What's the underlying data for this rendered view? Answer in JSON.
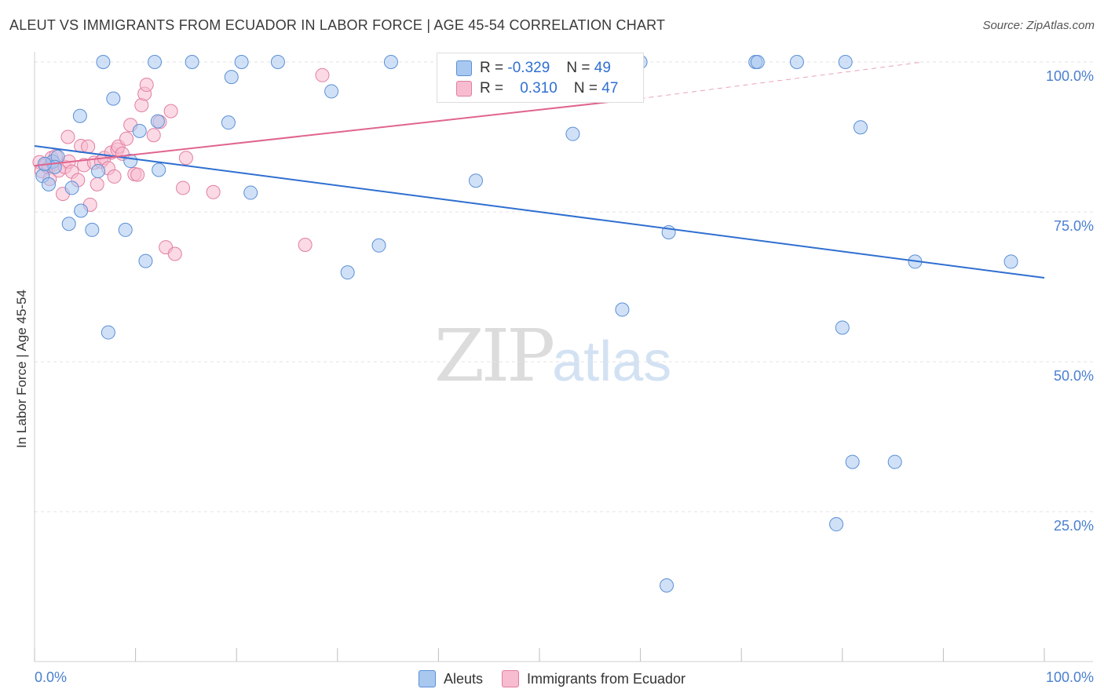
{
  "header": {
    "title": "ALEUT VS IMMIGRANTS FROM ECUADOR IN LABOR FORCE | AGE 45-54 CORRELATION CHART",
    "source": "Source: ZipAtlas.com"
  },
  "watermark": {
    "zip": "ZIP",
    "atlas": "atlas"
  },
  "legend_top": {
    "rows": [
      {
        "r_label": "R =",
        "r_value": "-0.329",
        "n_label": "N =",
        "n_value": "49"
      },
      {
        "r_label": "R =",
        "r_value": "0.310",
        "n_label": "N =",
        "n_value": "47"
      }
    ]
  },
  "legend_bottom": {
    "items": [
      "Aleuts",
      "Immigrants from Ecuador"
    ]
  },
  "colors": {
    "blue_fill": "#a9c8f0",
    "blue_stroke": "#5b8fd6",
    "blue_line": "#2f6fd0",
    "pink_fill": "#f7bcd0",
    "pink_stroke": "#e27ea1",
    "pink_line": "#e0648f",
    "grid": "#e3e3e3",
    "axis_label": "#4a7fd0"
  },
  "chart_data": {
    "type": "scatter",
    "title": "ALEUT VS IMMIGRANTS FROM ECUADOR IN LABOR FORCE | AGE 45-54 CORRELATION CHART",
    "xlabel": "",
    "ylabel": "In Labor Force | Age 45-54",
    "xlim": [
      0,
      100
    ],
    "ylim": [
      0,
      100
    ],
    "x_tick_labels": [
      "0.0%",
      "100.0%"
    ],
    "y_ticks": [
      25,
      50,
      75,
      100
    ],
    "y_tick_labels": [
      "25.0%",
      "50.0%",
      "75.0%",
      "100.0%"
    ],
    "series": [
      {
        "name": "Aleuts",
        "r": -0.329,
        "n": 49,
        "trend": {
          "x": [
            0,
            100
          ],
          "y": [
            86.0,
            64.0
          ]
        },
        "points": [
          [
            0.8,
            81.0
          ],
          [
            1.4,
            79.6
          ],
          [
            1.8,
            83.4
          ],
          [
            2.3,
            84.2
          ],
          [
            3.7,
            79.0
          ],
          [
            3.4,
            73.0
          ],
          [
            4.6,
            75.2
          ],
          [
            4.5,
            91.0
          ],
          [
            5.7,
            72.0
          ],
          [
            6.3,
            81.8
          ],
          [
            6.8,
            100.0
          ],
          [
            7.8,
            93.9
          ],
          [
            9.0,
            72.0
          ],
          [
            10.4,
            88.5
          ],
          [
            11.0,
            66.8
          ],
          [
            11.9,
            100.0
          ],
          [
            12.2,
            90.1
          ],
          [
            12.3,
            82.0
          ],
          [
            7.3,
            54.9
          ],
          [
            9.5,
            83.5
          ],
          [
            15.6,
            100.0
          ],
          [
            19.2,
            89.9
          ],
          [
            19.5,
            97.5
          ],
          [
            20.5,
            100.0
          ],
          [
            21.4,
            78.2
          ],
          [
            24.1,
            100.0
          ],
          [
            29.4,
            95.1
          ],
          [
            31.0,
            64.9
          ],
          [
            34.1,
            69.4
          ],
          [
            35.3,
            100.0
          ],
          [
            43.7,
            80.2
          ],
          [
            53.3,
            88.0
          ],
          [
            58.2,
            58.7
          ],
          [
            60.0,
            100.0
          ],
          [
            62.6,
            12.7
          ],
          [
            62.8,
            71.6
          ],
          [
            71.4,
            100.0
          ],
          [
            71.6,
            100.0
          ],
          [
            75.5,
            100.0
          ],
          [
            79.4,
            22.9
          ],
          [
            80.0,
            55.7
          ],
          [
            80.3,
            100.0
          ],
          [
            81.0,
            33.3
          ],
          [
            81.8,
            89.1
          ],
          [
            85.2,
            33.3
          ],
          [
            87.2,
            66.7
          ],
          [
            96.7,
            66.7
          ],
          [
            2.0,
            82.5
          ],
          [
            1.0,
            83.0
          ]
        ]
      },
      {
        "name": "Immigrants from Ecuador",
        "r": 0.31,
        "n": 47,
        "trend": {
          "x": [
            0,
            60
          ],
          "y": [
            82.7,
            93.9
          ]
        },
        "trend_dashed": {
          "x": [
            60,
            88
          ],
          "y": [
            93.9,
            100.0
          ]
        },
        "points": [
          [
            0.5,
            83.3
          ],
          [
            0.7,
            81.8
          ],
          [
            1.1,
            82.8
          ],
          [
            1.4,
            82.4
          ],
          [
            1.5,
            80.5
          ],
          [
            1.7,
            84.0
          ],
          [
            1.9,
            83.0
          ],
          [
            2.1,
            84.3
          ],
          [
            2.4,
            81.9
          ],
          [
            2.8,
            78.0
          ],
          [
            3.0,
            82.5
          ],
          [
            3.3,
            87.5
          ],
          [
            3.4,
            83.4
          ],
          [
            3.7,
            81.7
          ],
          [
            4.3,
            80.3
          ],
          [
            4.6,
            86.0
          ],
          [
            4.9,
            82.8
          ],
          [
            5.3,
            85.9
          ],
          [
            5.5,
            76.2
          ],
          [
            5.9,
            83.2
          ],
          [
            6.2,
            79.6
          ],
          [
            6.6,
            83.4
          ],
          [
            6.9,
            84.0
          ],
          [
            7.3,
            82.3
          ],
          [
            7.6,
            84.9
          ],
          [
            7.9,
            80.9
          ],
          [
            8.2,
            85.4
          ],
          [
            8.3,
            85.9
          ],
          [
            8.7,
            84.7
          ],
          [
            9.1,
            87.2
          ],
          [
            9.5,
            89.5
          ],
          [
            9.9,
            81.3
          ],
          [
            10.2,
            81.2
          ],
          [
            10.6,
            92.8
          ],
          [
            10.9,
            94.7
          ],
          [
            11.1,
            96.2
          ],
          [
            11.8,
            87.8
          ],
          [
            12.4,
            90.0
          ],
          [
            13.0,
            69.1
          ],
          [
            13.5,
            91.8
          ],
          [
            13.9,
            68.0
          ],
          [
            14.7,
            79.0
          ],
          [
            15.0,
            84.0
          ],
          [
            17.7,
            78.3
          ],
          [
            26.8,
            69.5
          ],
          [
            28.5,
            97.8
          ],
          [
            59.5,
            100.0
          ]
        ]
      }
    ]
  }
}
